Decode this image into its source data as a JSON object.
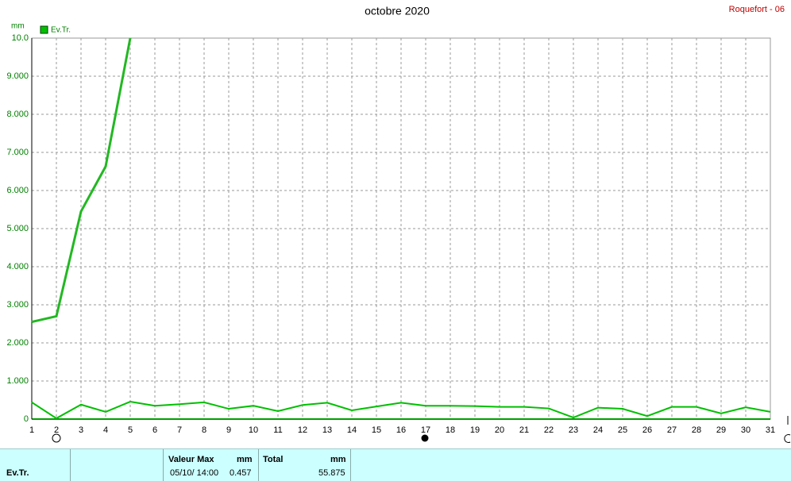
{
  "chart_data": {
    "type": "line",
    "title": "octobre 2020",
    "station": "Roquefort - 06",
    "y_label": "mm",
    "categories": [
      "1",
      "2",
      "3",
      "4",
      "5",
      "6",
      "7",
      "8",
      "9",
      "10",
      "11",
      "12",
      "13",
      "14",
      "15",
      "16",
      "17",
      "18",
      "19",
      "20",
      "21",
      "22",
      "23",
      "24",
      "25",
      "26",
      "27",
      "28",
      "29",
      "30",
      "31"
    ],
    "series": [
      {
        "name": "Ev.Tr.",
        "color": "#00c000",
        "width": 2,
        "values": [
          0.44,
          0.02,
          0.38,
          0.19,
          0.457,
          0.35,
          0.39,
          0.44,
          0.27,
          0.35,
          0.21,
          0.37,
          0.43,
          0.23,
          0.33,
          0.43,
          0.35,
          0.35,
          0.34,
          0.32,
          0.32,
          0.28,
          0.04,
          0.3,
          0.27,
          0.08,
          0.32,
          0.32,
          0.15,
          0.31,
          0.19
        ]
      },
      {
        "color": "#22b822",
        "width": 3,
        "values": [
          2.55,
          2.7,
          5.45,
          6.63,
          10.0,
          null,
          null,
          null,
          null,
          null,
          null,
          null,
          null,
          null,
          null,
          null,
          null,
          null,
          null,
          null,
          null,
          null,
          null,
          null,
          null,
          null,
          null,
          null,
          null,
          null,
          null
        ]
      }
    ],
    "ylim": [
      0,
      10
    ],
    "yticks": [
      0,
      {
        "value": 1,
        "label": "1.000"
      },
      {
        "value": 2,
        "label": "2.000"
      },
      {
        "value": 3,
        "label": "3.000"
      },
      {
        "value": 4,
        "label": "4.000"
      },
      {
        "value": 5,
        "label": "5.000"
      },
      {
        "value": 6,
        "label": "6.000"
      },
      {
        "value": 7,
        "label": "7.000"
      },
      {
        "value": 8,
        "label": "8.000"
      },
      {
        "value": 9,
        "label": "9.000"
      },
      {
        "value": 10,
        "label": "10.0"
      }
    ],
    "grid": true
  },
  "summary": {
    "row_label": "Ev.Tr.",
    "max_label": "Valeur Max",
    "max_unit": "mm",
    "max_date": "05/10/ 14:00",
    "max_value": 0.457,
    "total_label": "Total",
    "total_unit": "mm",
    "total_value": 55.875
  }
}
